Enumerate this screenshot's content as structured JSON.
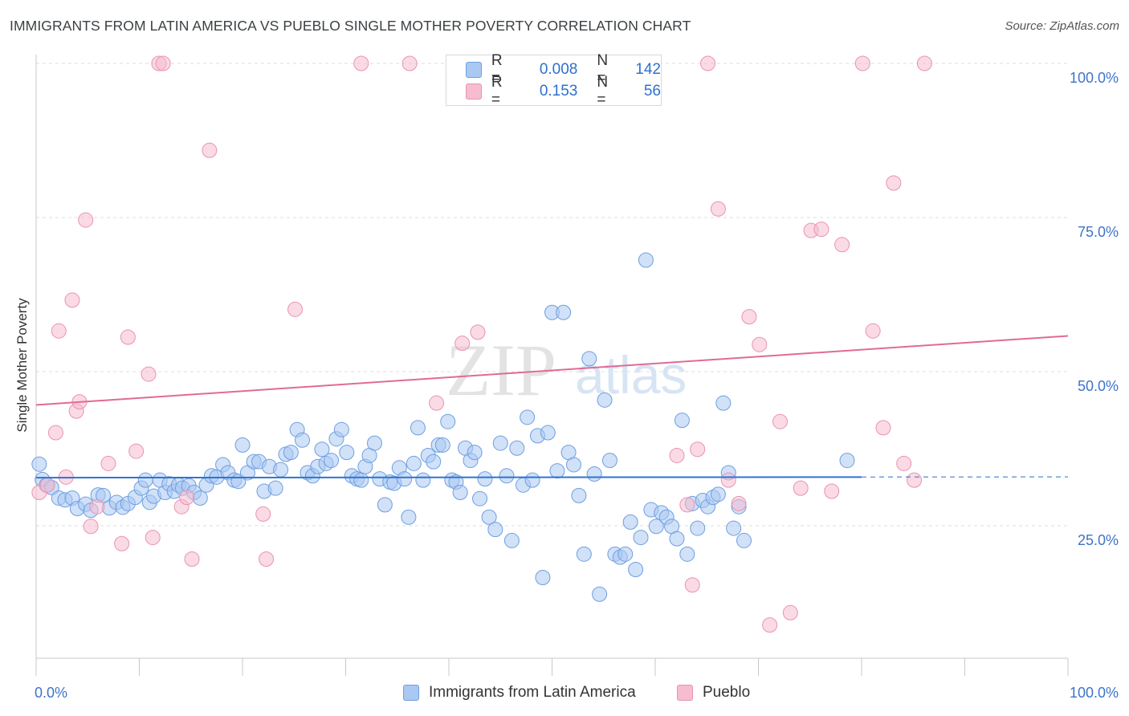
{
  "header": {
    "title": "IMMIGRANTS FROM LATIN AMERICA VS PUEBLO SINGLE MOTHER POVERTY CORRELATION CHART",
    "source": "Source: ZipAtlas.com"
  },
  "watermark": {
    "zip": "ZIP",
    "atlas": "atlas"
  },
  "legend_top": {
    "rows": [
      {
        "r_label": "R =",
        "r_value": "0.008",
        "n_label": "N =",
        "n_value": "142"
      },
      {
        "r_label": "R =",
        "r_value": "0.153",
        "n_label": "N =",
        "n_value": "56"
      }
    ]
  },
  "legend_bottom": {
    "items": [
      {
        "label": "Immigrants from Latin America"
      },
      {
        "label": "Pueblo"
      }
    ]
  },
  "chart_data": {
    "type": "scatter",
    "title": "IMMIGRANTS FROM LATIN AMERICA VS PUEBLO SINGLE MOTHER POVERTY CORRELATION CHART",
    "xlabel": "",
    "ylabel": "Single Mother Poverty",
    "xlim": [
      0,
      100
    ],
    "ylim": [
      0,
      102
    ],
    "x_tick_labels": [
      "0.0%",
      "100.0%"
    ],
    "y_tick_labels": [
      "25.0%",
      "50.0%",
      "75.0%",
      "100.0%"
    ],
    "y_ticks": [
      25,
      50,
      75,
      100
    ],
    "grid": "dashed horizontal",
    "legend_position": "top-center and bottom",
    "colors": {
      "blue_fill": "#a9c9f2",
      "blue_stroke": "#6f9fe0",
      "blue_line": "#2f74d0",
      "pink_fill": "#f6bcd0",
      "pink_stroke": "#e993b0",
      "pink_line": "#e06b95",
      "tick_label": "#3f74c8"
    },
    "series": [
      {
        "name": "Immigrants from Latin America",
        "trend": {
          "x0": 0,
          "y0": 32.8,
          "x1": 80,
          "y1": 32.9,
          "dashed_to": 100
        },
        "points": [
          [
            0.3,
            35.0
          ],
          [
            0.6,
            32.5
          ],
          [
            1.0,
            31.6
          ],
          [
            1.5,
            31.2
          ],
          [
            2.2,
            29.5
          ],
          [
            2.8,
            29.2
          ],
          [
            3.5,
            29.5
          ],
          [
            4.0,
            27.8
          ],
          [
            4.8,
            28.5
          ],
          [
            5.3,
            27.5
          ],
          [
            6.0,
            30.0
          ],
          [
            6.5,
            29.9
          ],
          [
            7.1,
            27.9
          ],
          [
            7.8,
            28.8
          ],
          [
            8.4,
            28.0
          ],
          [
            8.9,
            28.6
          ],
          [
            9.6,
            29.6
          ],
          [
            10.2,
            31.1
          ],
          [
            10.6,
            32.4
          ],
          [
            11.0,
            28.8
          ],
          [
            11.4,
            29.8
          ],
          [
            12.0,
            32.4
          ],
          [
            12.5,
            30.4
          ],
          [
            12.9,
            31.8
          ],
          [
            13.4,
            30.6
          ],
          [
            13.8,
            31.6
          ],
          [
            14.2,
            31.1
          ],
          [
            14.8,
            31.5
          ],
          [
            15.3,
            30.4
          ],
          [
            15.9,
            29.5
          ],
          [
            16.5,
            31.6
          ],
          [
            17.0,
            33.1
          ],
          [
            17.5,
            32.9
          ],
          [
            18.1,
            34.9
          ],
          [
            18.6,
            33.6
          ],
          [
            19.2,
            32.4
          ],
          [
            19.6,
            32.2
          ],
          [
            20.0,
            38.1
          ],
          [
            20.5,
            33.6
          ],
          [
            21.1,
            35.4
          ],
          [
            21.6,
            35.4
          ],
          [
            22.1,
            30.6
          ],
          [
            22.6,
            34.6
          ],
          [
            23.2,
            31.1
          ],
          [
            23.7,
            34.1
          ],
          [
            24.2,
            36.6
          ],
          [
            24.7,
            36.9
          ],
          [
            25.3,
            40.6
          ],
          [
            25.8,
            38.9
          ],
          [
            26.3,
            33.6
          ],
          [
            26.8,
            33.1
          ],
          [
            27.3,
            34.6
          ],
          [
            27.7,
            37.4
          ],
          [
            28.1,
            35.1
          ],
          [
            28.6,
            35.6
          ],
          [
            29.1,
            39.1
          ],
          [
            29.6,
            40.6
          ],
          [
            30.1,
            36.9
          ],
          [
            30.6,
            33.1
          ],
          [
            31.1,
            32.6
          ],
          [
            31.5,
            32.4
          ],
          [
            31.9,
            34.6
          ],
          [
            32.3,
            36.4
          ],
          [
            32.8,
            38.4
          ],
          [
            33.3,
            32.6
          ],
          [
            33.8,
            28.4
          ],
          [
            34.3,
            32.1
          ],
          [
            34.7,
            31.9
          ],
          [
            35.2,
            34.4
          ],
          [
            35.7,
            32.6
          ],
          [
            36.1,
            26.4
          ],
          [
            36.6,
            35.1
          ],
          [
            37.0,
            40.9
          ],
          [
            37.5,
            32.4
          ],
          [
            38.0,
            36.4
          ],
          [
            38.5,
            35.4
          ],
          [
            39.0,
            38.1
          ],
          [
            39.4,
            38.1
          ],
          [
            39.9,
            41.9
          ],
          [
            40.3,
            32.4
          ],
          [
            40.7,
            32.1
          ],
          [
            41.1,
            30.4
          ],
          [
            41.6,
            37.6
          ],
          [
            42.1,
            35.6
          ],
          [
            42.5,
            36.9
          ],
          [
            43.0,
            29.4
          ],
          [
            43.5,
            32.6
          ],
          [
            43.9,
            26.4
          ],
          [
            44.5,
            24.4
          ],
          [
            45.0,
            38.4
          ],
          [
            45.6,
            33.1
          ],
          [
            46.1,
            22.6
          ],
          [
            46.6,
            37.6
          ],
          [
            47.2,
            31.6
          ],
          [
            47.6,
            42.6
          ],
          [
            48.1,
            32.4
          ],
          [
            48.6,
            39.6
          ],
          [
            49.1,
            16.6
          ],
          [
            49.6,
            40.1
          ],
          [
            50.0,
            59.6
          ],
          [
            50.5,
            33.9
          ],
          [
            51.1,
            59.6
          ],
          [
            51.6,
            36.9
          ],
          [
            52.1,
            34.9
          ],
          [
            52.6,
            29.9
          ],
          [
            53.1,
            20.4
          ],
          [
            53.6,
            52.1
          ],
          [
            54.1,
            33.4
          ],
          [
            54.6,
            13.9
          ],
          [
            55.1,
            45.4
          ],
          [
            55.6,
            35.6
          ],
          [
            56.1,
            20.4
          ],
          [
            56.6,
            19.9
          ],
          [
            57.1,
            20.4
          ],
          [
            57.6,
            25.6
          ],
          [
            58.1,
            17.9
          ],
          [
            58.6,
            23.1
          ],
          [
            59.1,
            68.1
          ],
          [
            59.6,
            27.6
          ],
          [
            60.1,
            24.9
          ],
          [
            60.6,
            27.1
          ],
          [
            61.1,
            26.4
          ],
          [
            61.6,
            24.9
          ],
          [
            62.1,
            22.9
          ],
          [
            62.6,
            42.1
          ],
          [
            63.1,
            20.4
          ],
          [
            63.6,
            28.6
          ],
          [
            64.1,
            24.6
          ],
          [
            64.6,
            29.1
          ],
          [
            65.1,
            28.1
          ],
          [
            65.6,
            29.6
          ],
          [
            66.1,
            30.1
          ],
          [
            66.6,
            44.9
          ],
          [
            67.1,
            33.6
          ],
          [
            67.6,
            24.6
          ],
          [
            68.1,
            28.1
          ],
          [
            68.6,
            22.6
          ],
          [
            78.6,
            35.6
          ]
        ]
      },
      {
        "name": "Pueblo",
        "trend": {
          "x0": 0,
          "y0": 44.6,
          "x1": 100,
          "y1": 55.8
        },
        "points": [
          [
            0.3,
            30.4
          ],
          [
            1.1,
            31.6
          ],
          [
            1.9,
            40.1
          ],
          [
            2.2,
            56.6
          ],
          [
            2.9,
            32.9
          ],
          [
            3.5,
            61.6
          ],
          [
            3.9,
            43.6
          ],
          [
            4.2,
            45.1
          ],
          [
            4.8,
            74.6
          ],
          [
            5.3,
            24.9
          ],
          [
            5.9,
            28.1
          ],
          [
            7.0,
            35.1
          ],
          [
            8.3,
            22.1
          ],
          [
            8.9,
            55.6
          ],
          [
            9.7,
            37.1
          ],
          [
            10.9,
            49.6
          ],
          [
            11.3,
            23.1
          ],
          [
            11.9,
            100.0
          ],
          [
            12.3,
            100.0
          ],
          [
            14.1,
            28.1
          ],
          [
            14.6,
            29.6
          ],
          [
            15.1,
            19.6
          ],
          [
            16.8,
            85.9
          ],
          [
            22.0,
            26.9
          ],
          [
            22.3,
            19.6
          ],
          [
            25.1,
            60.1
          ],
          [
            31.5,
            100.0
          ],
          [
            36.2,
            100.0
          ],
          [
            38.8,
            44.9
          ],
          [
            41.3,
            54.6
          ],
          [
            42.8,
            56.4
          ],
          [
            62.1,
            36.4
          ],
          [
            63.1,
            28.4
          ],
          [
            63.6,
            15.4
          ],
          [
            64.1,
            37.4
          ],
          [
            65.1,
            100.0
          ],
          [
            66.1,
            76.4
          ],
          [
            67.1,
            32.4
          ],
          [
            68.1,
            28.6
          ],
          [
            69.1,
            58.9
          ],
          [
            70.1,
            54.4
          ],
          [
            71.1,
            8.9
          ],
          [
            72.1,
            41.9
          ],
          [
            73.1,
            10.9
          ],
          [
            74.1,
            31.1
          ],
          [
            75.1,
            72.9
          ],
          [
            76.1,
            73.1
          ],
          [
            77.1,
            30.6
          ],
          [
            78.1,
            70.6
          ],
          [
            80.1,
            100.0
          ],
          [
            81.1,
            56.6
          ],
          [
            82.1,
            40.9
          ],
          [
            83.1,
            80.6
          ],
          [
            84.1,
            35.1
          ],
          [
            85.1,
            32.4
          ],
          [
            86.1,
            100.0
          ]
        ]
      }
    ]
  }
}
